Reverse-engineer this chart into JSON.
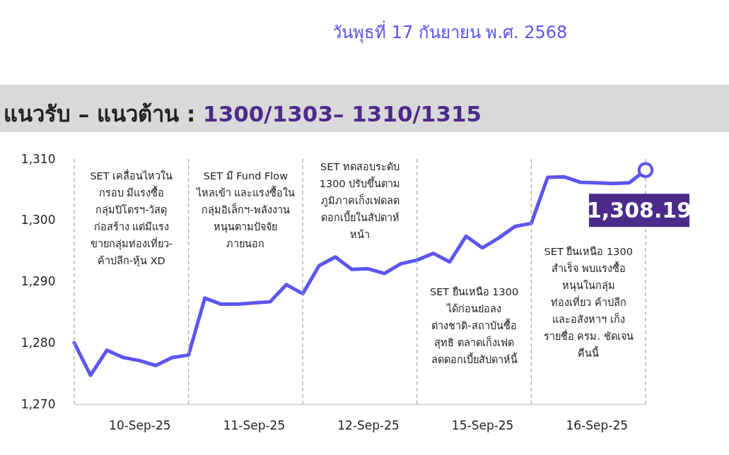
{
  "chart_data": {
    "type": "line",
    "title": "แนวรับ – แนวต้าน : 1300/1303– 1310/1315",
    "subtitle": "วันพุธที่ 17 กันยายน พ.ศ. 2568",
    "categories": [
      null,
      null,
      null,
      null,
      "10-Sep-25",
      null,
      null,
      null,
      null,
      null,
      null,
      "11-Sep-25",
      null,
      null,
      null,
      null,
      null,
      null,
      "12-Sep-25",
      null,
      null,
      null,
      null,
      null,
      null,
      "15-Sep-25",
      null,
      null,
      null,
      null,
      null,
      null,
      "16-Sep-25",
      null,
      null,
      null
    ],
    "series": [
      {
        "color": "#5b55f0",
        "values": [
          1280.0,
          1274.7,
          1278.8,
          1277.6,
          1277.1,
          1276.3,
          1277.6,
          1278.0,
          1287.3,
          1286.3,
          1286.3,
          1286.5,
          1286.7,
          1289.5,
          1288.0,
          1292.6,
          1294.0,
          1292.0,
          1292.1,
          1291.3,
          1292.9,
          1293.5,
          1294.6,
          1293.2,
          1297.4,
          1295.5,
          1297.1,
          1299.0,
          1299.5,
          1307.0,
          1307.1,
          1306.2,
          1306.1,
          1306.0,
          1306.1,
          1308.19
        ],
        "value_labels": [
          null,
          null,
          null,
          null,
          null,
          null,
          null,
          null,
          null,
          null,
          null,
          null,
          null,
          null,
          null,
          null,
          null,
          null,
          null,
          null,
          null,
          null,
          null,
          null,
          null,
          null,
          null,
          null,
          null,
          null,
          null,
          null,
          null,
          null,
          null,
          "1,308.19"
        ]
      }
    ],
    "ylim": [
      1270,
      1310
    ],
    "yticks": [
      {
        "value": 1270,
        "label": "1,270"
      },
      {
        "value": 1280,
        "label": "1,280"
      },
      {
        "value": 1290,
        "label": "1,290"
      },
      {
        "value": 1300,
        "label": "1,300"
      },
      {
        "value": 1310,
        "label": "1,310"
      }
    ],
    "grid": "x",
    "line_style": "solid",
    "annotations": [
      "SET เคลื่อนไหวใน\nกรอบ มีแรงซื้อ\nกลุ่มปิโตรฯ-วัสดุ\nก่อสร้าง แต่มีแรง\nขายกลุ่มท่องเที่ยว-\nค้าปลีก-หุ้น XD",
      "SET มี Fund Flow\nไหลเข้า และแรงซื้อใน\nกลุ่มอิเล็กฯ-พลังงาน\nหนุนตามปัจจัย\nภายนอก",
      "SET ทดสอบระดับ\n1300 ปรับขึ้นตาม\nภูมิภาคเก็งเฟดลด\nดอกเบี้ยในสัปดาห์\nหน้า",
      "SET ยืนเหนือ 1300\nได้ก่อนย่อลง\nต่างชาติ-สถาบันซื้อ\nสุทธิ ตลาดเก็งเฟด\nลดดอกเบี้ยสัปดาห์นี้",
      "SET ยืนเหนือ 1300\nสำเร็จ พบแรงซื้อ\nหนุนในกลุ่ม\nท่องเที่ยว ค้าปลีก\nและอสังหาฯ เก็ง\nรายชื่อ ครม. ชัดเจน\nคืนนี้"
    ]
  }
}
